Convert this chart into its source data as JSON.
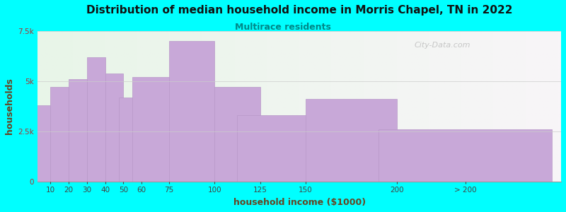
{
  "title": "Distribution of median household income in Morris Chapel, TN in 2022",
  "subtitle": "Multirace residents",
  "xlabel": "household income ($1000)",
  "ylabel": "households",
  "background_color": "#00FFFF",
  "bar_color": "#c8a8d8",
  "bar_edge_color": "#b898c8",
  "title_color": "#111111",
  "subtitle_color": "#008888",
  "axis_label_color": "#664422",
  "tick_label_color": "#444444",
  "ytick_label_color": "#aa3333",
  "categories": [
    "10",
    "20",
    "30",
    "40",
    "50",
    "60",
    "75",
    "100",
    "125",
    "150",
    "200",
    "> 200"
  ],
  "values": [
    3800,
    4700,
    5100,
    6200,
    5400,
    4200,
    5200,
    7000,
    4700,
    3300,
    4100,
    2600
  ],
  "ylim": [
    0,
    7500
  ],
  "yticks": [
    0,
    2500,
    5000,
    7500
  ],
  "ytick_labels": [
    "0",
    "2.5k",
    "5k",
    "7.5k"
  ],
  "watermark": "City-Data.com",
  "bar_lefts": [
    5,
    15,
    25,
    35,
    45,
    55,
    67.5,
    87.5,
    112.5,
    137.5,
    175,
    237.5
  ],
  "bar_widths": [
    10,
    10,
    10,
    10,
    10,
    15,
    25,
    25,
    25,
    50,
    50,
    95
  ],
  "xtick_positions": [
    10,
    20,
    30,
    40,
    50,
    60,
    75,
    100,
    125,
    150,
    200,
    237.5
  ],
  "xlim": [
    3,
    290
  ]
}
